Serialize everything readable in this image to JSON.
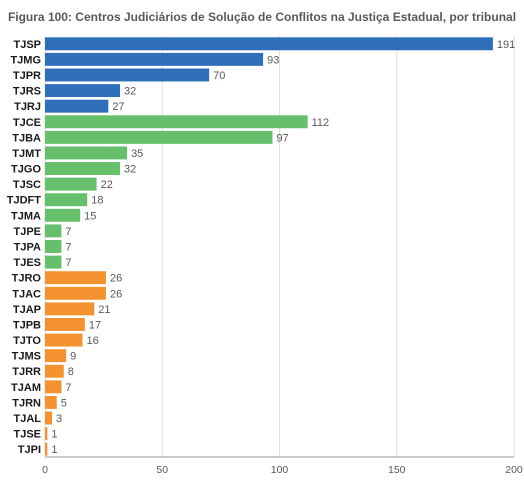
{
  "chart_data": {
    "type": "bar",
    "orientation": "horizontal",
    "title": "Figura 100: Centros Judiciários de Solução de Conflitos na Justiça Estadual, por tribunal",
    "categories": [
      "TJSP",
      "TJMG",
      "TJPR",
      "TJRS",
      "TJRJ",
      "TJCE",
      "TJBA",
      "TJMT",
      "TJGO",
      "TJSC",
      "TJDFT",
      "TJMA",
      "TJPE",
      "TJPA",
      "TJES",
      "TJRO",
      "TJAC",
      "TJAP",
      "TJPB",
      "TJTO",
      "TJMS",
      "TJRR",
      "TJAM",
      "TJRN",
      "TJAL",
      "TJSE",
      "TJPI"
    ],
    "values": [
      191,
      93,
      70,
      32,
      27,
      112,
      97,
      35,
      32,
      22,
      18,
      15,
      7,
      7,
      7,
      26,
      26,
      21,
      17,
      16,
      9,
      8,
      7,
      5,
      3,
      1,
      1
    ],
    "bar_colors": [
      "#2f6fb9",
      "#2f6fb9",
      "#2f6fb9",
      "#2f6fb9",
      "#2f6fb9",
      "#66bf6a",
      "#66bf6a",
      "#66bf6a",
      "#66bf6a",
      "#66bf6a",
      "#66bf6a",
      "#66bf6a",
      "#66bf6a",
      "#66bf6a",
      "#66bf6a",
      "#f5912e",
      "#f5912e",
      "#f5912e",
      "#f5912e",
      "#f5912e",
      "#f5912e",
      "#f5912e",
      "#f5912e",
      "#f5912e",
      "#f5912e",
      "#f5912e",
      "#f5912e"
    ],
    "xlim": [
      0,
      200
    ],
    "xticks": [
      0,
      50,
      100,
      150,
      200
    ],
    "xlabel": "",
    "ylabel": "",
    "grid": true,
    "legend": "none"
  }
}
